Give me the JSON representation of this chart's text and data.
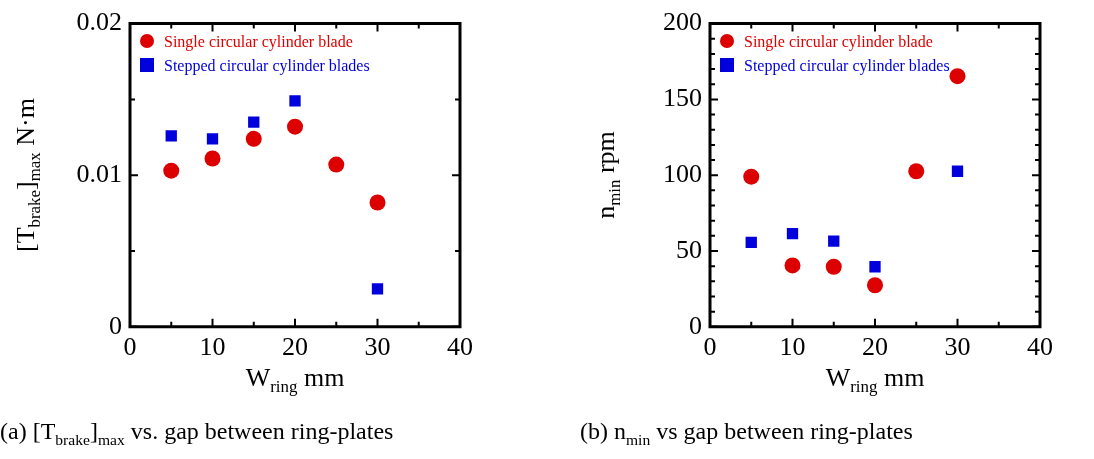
{
  "chart_data": [
    {
      "type": "scatter",
      "title": "(a) [T$_{brake}$]$_{max}$ vs. gap between ring-plates",
      "xlabel": "W$_{ring}$ mm",
      "ylabel": "[T$_{brake}$]$_{max}$ N·m",
      "x": [
        5,
        10,
        15,
        20,
        25,
        30
      ],
      "series": [
        {
          "name": "Single circular cylinder blade",
          "color": "#dd0000",
          "marker": "circle",
          "values": [
            0.0103,
            0.0111,
            0.0124,
            0.0132,
            0.0107,
            0.0082
          ]
        },
        {
          "name": "Stepped circular cylinder blades",
          "color": "#0000dd",
          "marker": "square",
          "x": [
            5,
            10,
            15,
            20,
            30
          ],
          "values": [
            0.0126,
            0.0124,
            0.0135,
            0.0149,
            0.0025
          ]
        }
      ],
      "xlim": [
        0,
        40
      ],
      "xticks": [
        0,
        {
          "value": 5,
          "label": null
        },
        10,
        {
          "value": 15,
          "label": null
        },
        20,
        {
          "value": 25,
          "label": null
        },
        30,
        {
          "value": 35,
          "label": null
        },
        40
      ],
      "ylim": [
        0,
        0.02
      ],
      "yticks": [
        0,
        {
          "value": 0.005,
          "label": null
        },
        0.01,
        {
          "value": 0.015,
          "label": null
        },
        0.02
      ],
      "legend": "top left",
      "grid": false
    },
    {
      "type": "scatter",
      "title": "(b) n$_{min}$ vs gap between ring-plates",
      "xlabel": "W$_{ring}$ mm",
      "ylabel": "n$_{min}$ rpm",
      "x": [
        5,
        10,
        15,
        20,
        25,
        30
      ],
      "series": [
        {
          "name": "Single circular cylinder blade",
          "color": "#dd0000",
          "marker": "circle",
          "values": [
            99,
            40.5,
            39.6,
            27.4,
            102.6,
            165.3
          ]
        },
        {
          "name": "Stepped circular cylinder blades",
          "color": "#0000dd",
          "marker": "square",
          "x": [
            5,
            10,
            15,
            20,
            30
          ],
          "values": [
            55.7,
            61.5,
            56.5,
            39.6,
            102.6
          ]
        }
      ],
      "xlim": [
        0,
        40
      ],
      "xticks": [
        0,
        {
          "value": 5,
          "label": null
        },
        10,
        {
          "value": 15,
          "label": null
        },
        20,
        {
          "value": 25,
          "label": null
        },
        30,
        {
          "value": 35,
          "label": null
        },
        40
      ],
      "ylim": [
        0,
        200
      ],
      "yticks": [
        0,
        {
          "value": 10,
          "label": null
        },
        {
          "value": 20,
          "label": null
        },
        {
          "value": 30,
          "label": null
        },
        {
          "value": 40,
          "label": null
        },
        50,
        {
          "value": 60,
          "label": null
        },
        {
          "value": 70,
          "label": null
        },
        {
          "value": 80,
          "label": null
        },
        {
          "value": 90,
          "label": null
        },
        100,
        {
          "value": 110,
          "label": null
        },
        {
          "value": 120,
          "label": null
        },
        {
          "value": 130,
          "label": null
        },
        {
          "value": 140,
          "label": null
        },
        150,
        {
          "value": 160,
          "label": null
        },
        {
          "value": 170,
          "label": null
        },
        {
          "value": 180,
          "label": null
        },
        {
          "value": 190,
          "label": null
        },
        200
      ],
      "legend": "top left",
      "grid": false
    }
  ]
}
